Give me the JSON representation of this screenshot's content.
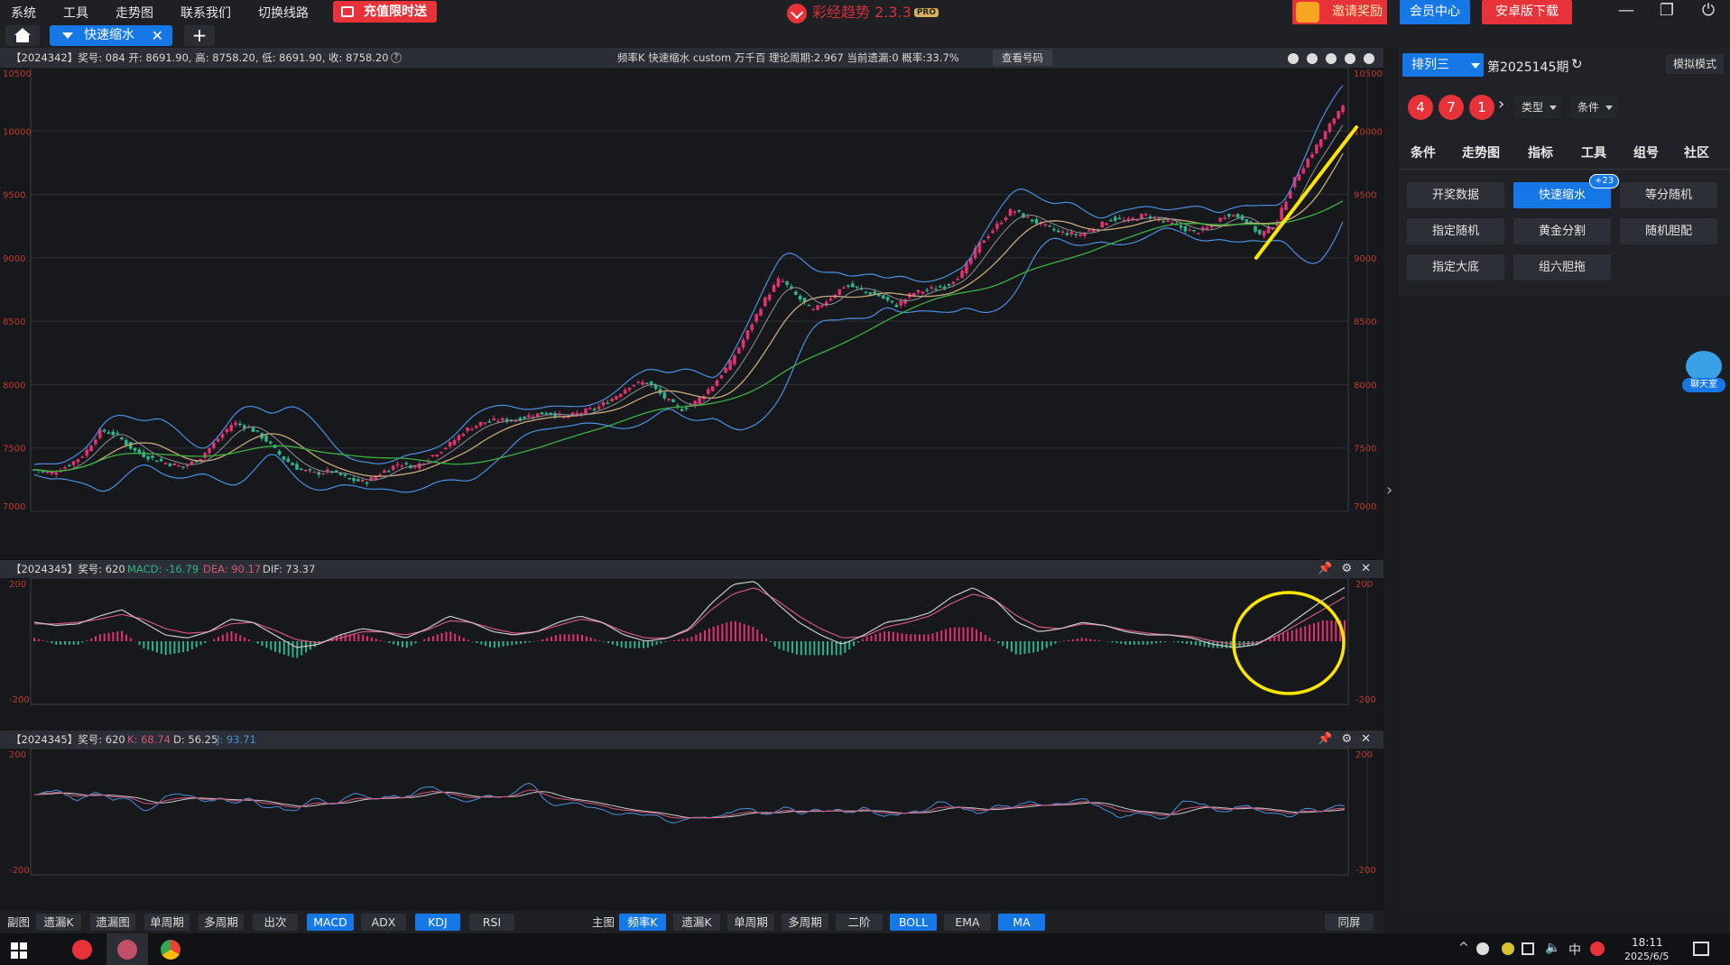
{
  "menu": {
    "items": [
      "系统",
      "工具",
      "走势图",
      "联系我们",
      "切换线路"
    ]
  },
  "promo": {
    "label": "充值限时送"
  },
  "brand": {
    "name": "彩经趋势 2.3.3",
    "badge": "PRO"
  },
  "topright": {
    "invite": "邀请奖励",
    "member": "会员中心",
    "android": "安卓版下载"
  },
  "tabs": {
    "active": "快速缩水",
    "close": "✕",
    "add": "+"
  },
  "main_header": {
    "left": "【2024342】奖号: 084  开: 8691.90, 高: 8758.20, 低: 8691.90, 收: 8758.20",
    "center": "频率K  快速缩水  custom  万千百  理论周期:2.967  当前遗漏:0  概率:33.7%",
    "button": "查看号码"
  },
  "macd_header": {
    "prefix": "【2024345】奖号: 620",
    "macd": "MACD: -16.79",
    "dea": "DEA: 90.17",
    "dif": "DIF: 73.37"
  },
  "kdj_header": {
    "prefix": "【2024345】奖号: 620",
    "k": "K: 68.74",
    "d": "D: 56.25",
    "j": "J: 93.71"
  },
  "bottom": {
    "left_label": "副图",
    "left_buttons": [
      "遗漏K",
      "遗漏图",
      "单周期",
      "多周期",
      "出次",
      "MACD",
      "ADX",
      "KDJ",
      "RSI"
    ],
    "right_label": "主图",
    "right_buttons": [
      "频率K",
      "遗漏K",
      "单周期",
      "多周期",
      "二阶",
      "BOLL",
      "EMA",
      "MA"
    ],
    "sync": "同屏"
  },
  "sidebar": {
    "lottery": "排列三",
    "period": "第2025145期",
    "mode": "模拟模式",
    "balls": [
      "4",
      "7",
      "1"
    ],
    "type": "类型",
    "cond": "条件",
    "tabs": [
      "条件",
      "走势图",
      "指标",
      "工具",
      "组号",
      "社区"
    ],
    "buttons": [
      "开奖数据",
      "快速缩水",
      "等分随机",
      "指定随机",
      "黄金分割",
      "随机胆配",
      "指定大底",
      "组六胆拖"
    ],
    "badge": "+23",
    "chat": "聊天室"
  },
  "taskbar": {
    "time": "18:11",
    "date": "2025/6/5",
    "ime": "中"
  },
  "chart_data": [
    {
      "type": "candlestick",
      "series": [
        {
          "name": "频率K"
        },
        {
          "name": "BOLL"
        },
        {
          "name": "MA"
        }
      ],
      "ylim": [
        7000,
        10500
      ],
      "ticks": [
        10500,
        10000,
        9500,
        9000,
        8500,
        8000,
        7500,
        7000
      ],
      "close_series": [
        7330,
        7300,
        7360,
        7450,
        7640,
        7600,
        7480,
        7420,
        7380,
        7350,
        7420,
        7560,
        7700,
        7660,
        7560,
        7420,
        7330,
        7300,
        7320,
        7250,
        7230,
        7310,
        7380,
        7350,
        7440,
        7520,
        7640,
        7700,
        7720,
        7720,
        7760,
        7780,
        7740,
        7780,
        7820,
        7900,
        8000,
        8020,
        7900,
        7800,
        7870,
        8000,
        8170,
        8400,
        8650,
        8840,
        8700,
        8580,
        8680,
        8790,
        8740,
        8700,
        8620,
        8720,
        8750,
        8780,
        8880,
        9100,
        9240,
        9380,
        9310,
        9250,
        9200,
        9180,
        9230,
        9310,
        9290,
        9340,
        9300,
        9250,
        9200,
        9240,
        9350,
        9310,
        9180,
        9280,
        9600,
        9800,
        10000,
        10220
      ]
    },
    {
      "type": "line",
      "name": "MACD",
      "ylim": [
        -200,
        200
      ],
      "ticks": [
        200,
        -200
      ]
    },
    {
      "type": "line",
      "name": "KDJ",
      "ylim": [
        -200,
        200
      ],
      "ticks": [
        200,
        -200
      ]
    }
  ]
}
